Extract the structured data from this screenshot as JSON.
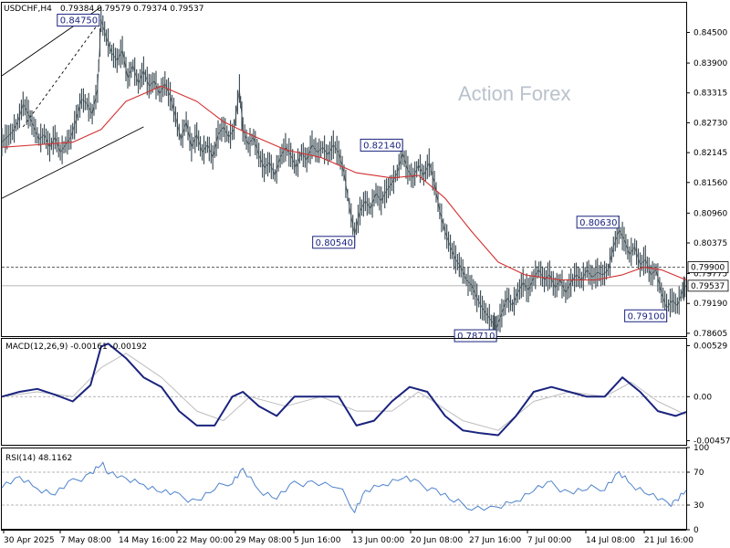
{
  "header": {
    "symbol": "USDCHF,H4",
    "ohlc": "0.79384 0.79579 0.79374 0.79537",
    "watermark": "Action Forex"
  },
  "chart_data": [
    {
      "type": "line",
      "panel": "price",
      "title": "USDCHF,H4 0.79384 0.79579 0.79374 0.79537",
      "x_tick_labels": [
        "30 Apr 2025",
        "7 May 08:00",
        "14 May 16:00",
        "22 May 00:00",
        "29 May 08:00",
        "5 Jun 16:00",
        "13 Jun 00:00",
        "20 Jun 08:00",
        "27 Jun 16:00",
        "7 Jul 00:00",
        "14 Jul 08:00",
        "21 Jul 16:00"
      ],
      "y_ticks": [
        "0.84500",
        "0.83900",
        "0.83315",
        "0.82730",
        "0.82145",
        "0.81560",
        "0.80960",
        "0.80375",
        "0.79775",
        "0.79190",
        "0.78605"
      ],
      "ylim": [
        0.7855,
        0.851
      ],
      "price_path": [
        [
          0,
          0.8235
        ],
        [
          3,
          0.8245
        ],
        [
          6,
          0.8255
        ],
        [
          9,
          0.8275
        ],
        [
          12,
          0.831
        ],
        [
          15,
          0.829
        ],
        [
          18,
          0.8265
        ],
        [
          21,
          0.824
        ],
        [
          24,
          0.825
        ],
        [
          27,
          0.8225
        ],
        [
          30,
          0.8245
        ],
        [
          33,
          0.8215
        ],
        [
          36,
          0.823
        ],
        [
          39,
          0.8245
        ],
        [
          42,
          0.828
        ],
        [
          45,
          0.832
        ],
        [
          48,
          0.831
        ],
        [
          51,
          0.829
        ],
        [
          54,
          0.834
        ],
        [
          56,
          0.8475
        ],
        [
          59,
          0.844
        ],
        [
          62,
          0.841
        ],
        [
          65,
          0.8395
        ],
        [
          68,
          0.8415
        ],
        [
          71,
          0.836
        ],
        [
          74,
          0.8385
        ],
        [
          77,
          0.835
        ],
        [
          80,
          0.8375
        ],
        [
          83,
          0.8345
        ],
        [
          86,
          0.8355
        ],
        [
          89,
          0.833
        ],
        [
          92,
          0.835
        ],
        [
          95,
          0.8325
        ],
        [
          98,
          0.8285
        ],
        [
          101,
          0.824
        ],
        [
          104,
          0.8275
        ],
        [
          107,
          0.8225
        ],
        [
          110,
          0.825
        ],
        [
          113,
          0.8215
        ],
        [
          116,
          0.823
        ],
        [
          119,
          0.8205
        ],
        [
          122,
          0.825
        ],
        [
          125,
          0.8265
        ],
        [
          128,
          0.8245
        ],
        [
          131,
          0.826
        ],
        [
          134,
          0.834
        ],
        [
          136,
          0.826
        ],
        [
          139,
          0.823
        ],
        [
          142,
          0.8245
        ],
        [
          145,
          0.821
        ],
        [
          148,
          0.8185
        ],
        [
          151,
          0.8195
        ],
        [
          154,
          0.817
        ],
        [
          157,
          0.8205
        ],
        [
          160,
          0.8225
        ],
        [
          163,
          0.821
        ],
        [
          166,
          0.8185
        ],
        [
          169,
          0.8215
        ],
        [
          172,
          0.82
        ],
        [
          175,
          0.823
        ],
        [
          178,
          0.8215
        ],
        [
          181,
          0.8225
        ],
        [
          184,
          0.821
        ],
        [
          187,
          0.823
        ],
        [
          190,
          0.8214
        ],
        [
          193,
          0.8175
        ],
        [
          196,
          0.811
        ],
        [
          199,
          0.8054
        ],
        [
          202,
          0.81
        ],
        [
          205,
          0.812
        ],
        [
          208,
          0.8105
        ],
        [
          211,
          0.8135
        ],
        [
          214,
          0.812
        ],
        [
          217,
          0.814
        ],
        [
          220,
          0.8155
        ],
        [
          223,
          0.8175
        ],
        [
          226,
          0.8214
        ],
        [
          229,
          0.818
        ],
        [
          232,
          0.8165
        ],
        [
          235,
          0.819
        ],
        [
          238,
          0.817
        ],
        [
          241,
          0.8195
        ],
        [
          244,
          0.8155
        ],
        [
          247,
          0.81
        ],
        [
          250,
          0.806
        ],
        [
          253,
          0.803
        ],
        [
          256,
          0.8005
        ],
        [
          259,
          0.799
        ],
        [
          262,
          0.7965
        ],
        [
          265,
          0.7955
        ],
        [
          268,
          0.793
        ],
        [
          271,
          0.791
        ],
        [
          274,
          0.7895
        ],
        [
          277,
          0.788
        ],
        [
          279,
          0.7871
        ],
        [
          282,
          0.79
        ],
        [
          285,
          0.793
        ],
        [
          288,
          0.7915
        ],
        [
          291,
          0.794
        ],
        [
          294,
          0.796
        ],
        [
          297,
          0.7945
        ],
        [
          300,
          0.797
        ],
        [
          303,
          0.7985
        ],
        [
          306,
          0.7965
        ],
        [
          309,
          0.7975
        ],
        [
          312,
          0.795
        ],
        [
          315,
          0.7965
        ],
        [
          318,
          0.794
        ],
        [
          321,
          0.796
        ],
        [
          324,
          0.7975
        ],
        [
          327,
          0.7965
        ],
        [
          330,
          0.7985
        ],
        [
          333,
          0.797
        ],
        [
          336,
          0.798
        ],
        [
          339,
          0.7975
        ],
        [
          342,
          0.7985
        ],
        [
          345,
          0.803
        ],
        [
          348,
          0.8063
        ],
        [
          351,
          0.8045
        ],
        [
          354,
          0.8015
        ],
        [
          357,
          0.803
        ],
        [
          360,
          0.7995
        ],
        [
          363,
          0.8005
        ],
        [
          366,
          0.7975
        ],
        [
          369,
          0.7985
        ],
        [
          372,
          0.794
        ],
        [
          375,
          0.791
        ],
        [
          378,
          0.7925
        ],
        [
          381,
          0.7915
        ],
        [
          384,
          0.7945
        ],
        [
          386,
          0.7954
        ]
      ],
      "ma_path": [
        [
          0,
          0.8225
        ],
        [
          20,
          0.823
        ],
        [
          40,
          0.8235
        ],
        [
          56,
          0.826
        ],
        [
          70,
          0.8315
        ],
        [
          90,
          0.8345
        ],
        [
          110,
          0.8315
        ],
        [
          125,
          0.8275
        ],
        [
          140,
          0.825
        ],
        [
          160,
          0.822
        ],
        [
          180,
          0.8205
        ],
        [
          200,
          0.8175
        ],
        [
          220,
          0.8165
        ],
        [
          235,
          0.817
        ],
        [
          250,
          0.8125
        ],
        [
          265,
          0.806
        ],
        [
          280,
          0.8
        ],
        [
          295,
          0.7975
        ],
        [
          315,
          0.7965
        ],
        [
          335,
          0.7965
        ],
        [
          350,
          0.7975
        ],
        [
          362,
          0.799
        ],
        [
          372,
          0.7985
        ],
        [
          386,
          0.7965
        ]
      ],
      "channel_lines": [
        [
          [
            0,
            0.8365
          ],
          [
            56,
            0.85
          ]
        ],
        [
          [
            0,
            0.8125
          ],
          [
            80,
            0.8265
          ]
        ]
      ],
      "trend_line_dashed": [
        [
          12,
          0.8265
        ],
        [
          56,
          0.8475
        ]
      ],
      "horizontal_line_dotted": 0.799,
      "horizontal_line_current": 0.79537,
      "annotations": [
        {
          "text": "0.84750",
          "x": 56,
          "y": 0.8475
        },
        {
          "text": "0.82140",
          "x": 226,
          "y": 0.8214
        },
        {
          "text": "0.80540",
          "x": 199,
          "y": 0.8054
        },
        {
          "text": "0.80630",
          "x": 348,
          "y": 0.8063
        },
        {
          "text": "0.78710",
          "x": 279,
          "y": 0.7871
        },
        {
          "text": "0.79100",
          "x": 375,
          "y": 0.791
        }
      ],
      "price_tags": [
        {
          "text": "0.79900",
          "value": 0.799
        },
        {
          "text": "0.79537",
          "value": 0.79537
        }
      ],
      "colors": {
        "price": "#37474f",
        "ma": "#d32f2f",
        "label": "#1a237e"
      }
    },
    {
      "type": "line",
      "panel": "macd",
      "title": "MACD(12,26,9) -0.00161 -0.00192",
      "y_ticks": [
        "0.00529",
        "0.00",
        "-0.00457"
      ],
      "ylim": [
        -0.005,
        0.006
      ],
      "macd_path": [
        [
          0,
          0.0
        ],
        [
          10,
          0.0005
        ],
        [
          20,
          0.0008
        ],
        [
          30,
          0.0002
        ],
        [
          40,
          -0.0005
        ],
        [
          50,
          0.0012
        ],
        [
          56,
          0.0052
        ],
        [
          60,
          0.0055
        ],
        [
          70,
          0.004
        ],
        [
          80,
          0.002
        ],
        [
          90,
          0.001
        ],
        [
          100,
          -0.0015
        ],
        [
          110,
          -0.003
        ],
        [
          120,
          -0.003
        ],
        [
          130,
          0.0
        ],
        [
          136,
          0.0005
        ],
        [
          145,
          -0.001
        ],
        [
          155,
          -0.002
        ],
        [
          165,
          0.0
        ],
        [
          175,
          0.0
        ],
        [
          190,
          0.0
        ],
        [
          200,
          -0.003
        ],
        [
          210,
          -0.0025
        ],
        [
          220,
          -0.0005
        ],
        [
          230,
          0.001
        ],
        [
          240,
          0.0005
        ],
        [
          250,
          -0.002
        ],
        [
          260,
          -0.0035
        ],
        [
          270,
          -0.0038
        ],
        [
          280,
          -0.004
        ],
        [
          290,
          -0.002
        ],
        [
          300,
          0.0005
        ],
        [
          310,
          0.001
        ],
        [
          320,
          0.0005
        ],
        [
          330,
          0.0
        ],
        [
          340,
          0.0
        ],
        [
          350,
          0.002
        ],
        [
          360,
          0.0005
        ],
        [
          370,
          -0.0015
        ],
        [
          380,
          -0.002
        ],
        [
          386,
          -0.0016
        ]
      ],
      "signal_path": [
        [
          0,
          0.0
        ],
        [
          20,
          0.0005
        ],
        [
          40,
          0.0
        ],
        [
          56,
          0.003
        ],
        [
          70,
          0.0045
        ],
        [
          90,
          0.002
        ],
        [
          110,
          -0.0015
        ],
        [
          125,
          -0.0025
        ],
        [
          140,
          0.0
        ],
        [
          160,
          -0.001
        ],
        [
          180,
          0.0
        ],
        [
          200,
          -0.0015
        ],
        [
          220,
          -0.0015
        ],
        [
          235,
          0.0005
        ],
        [
          260,
          -0.0025
        ],
        [
          280,
          -0.0035
        ],
        [
          300,
          -0.0005
        ],
        [
          320,
          0.0005
        ],
        [
          340,
          0.0
        ],
        [
          355,
          0.0015
        ],
        [
          370,
          -0.0005
        ],
        [
          386,
          -0.0019
        ]
      ],
      "zero_line": 0,
      "colors": {
        "macd": "#1a237e",
        "signal": "#bdbdbd"
      }
    },
    {
      "type": "line",
      "panel": "rsi",
      "title": "RSI(14) 48.1162",
      "y_ticks": [
        "100",
        "70",
        "30",
        "0"
      ],
      "ylim": [
        0,
        100
      ],
      "levels": [
        70,
        30
      ],
      "rsi_path": [
        [
          0,
          55
        ],
        [
          10,
          62
        ],
        [
          20,
          50
        ],
        [
          30,
          45
        ],
        [
          40,
          58
        ],
        [
          50,
          68
        ],
        [
          56,
          80
        ],
        [
          60,
          72
        ],
        [
          70,
          60
        ],
        [
          80,
          55
        ],
        [
          90,
          48
        ],
        [
          100,
          40
        ],
        [
          110,
          35
        ],
        [
          120,
          50
        ],
        [
          130,
          60
        ],
        [
          136,
          72
        ],
        [
          145,
          48
        ],
        [
          155,
          40
        ],
        [
          165,
          55
        ],
        [
          175,
          58
        ],
        [
          190,
          52
        ],
        [
          199,
          25
        ],
        [
          205,
          45
        ],
        [
          215,
          55
        ],
        [
          226,
          65
        ],
        [
          235,
          55
        ],
        [
          245,
          48
        ],
        [
          255,
          35
        ],
        [
          265,
          28
        ],
        [
          279,
          25
        ],
        [
          290,
          35
        ],
        [
          300,
          50
        ],
        [
          310,
          55
        ],
        [
          320,
          45
        ],
        [
          330,
          50
        ],
        [
          340,
          52
        ],
        [
          348,
          68
        ],
        [
          355,
          55
        ],
        [
          365,
          45
        ],
        [
          375,
          30
        ],
        [
          380,
          35
        ],
        [
          386,
          48
        ]
      ],
      "colors": {
        "rsi": "#4f83cc"
      }
    }
  ],
  "panels": {
    "macd_label": "MACD(12,26,9) -0.00161 -0.00192",
    "rsi_label": "RSI(14) 48.1162"
  }
}
